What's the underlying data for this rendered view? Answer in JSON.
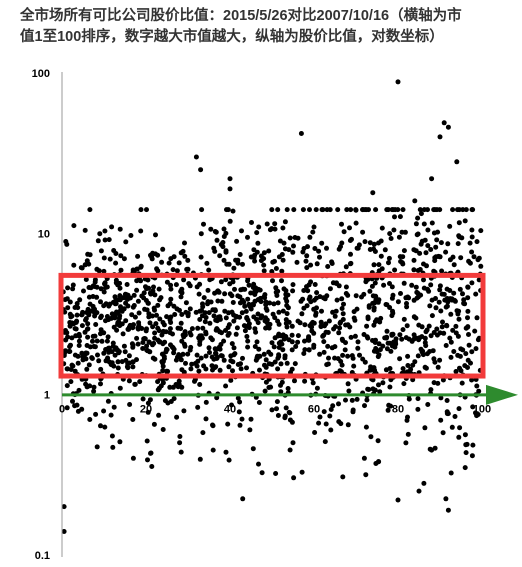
{
  "chart_data": {
    "type": "scatter",
    "title_lines": [
      "全市场所有可比公司股价比值：2015/5/26对比2007/10/16（横轴为市",
      "值1至100排序，数字越大市值越大，纵轴为股价比值，对数坐标）"
    ],
    "x_ticks": [
      "0",
      "20",
      "40",
      "60",
      "80",
      "100"
    ],
    "y_ticks": [
      "100",
      "10",
      "1",
      "0.1"
    ],
    "xlim": [
      0,
      100
    ],
    "ylim": [
      0.1,
      100
    ],
    "y_scale": "log",
    "grid": false,
    "colors": {
      "points": "#000000",
      "highlight_box": "#f23b3b",
      "arrow": "#2e8b2e",
      "axis": "#999999"
    },
    "highlight_box": {
      "x_range": [
        0,
        100
      ],
      "y_range": [
        1.3,
        5.5
      ]
    },
    "approx_point_count": 1700,
    "points": [
      [
        0.5,
        0.2
      ],
      [
        0.5,
        0.14
      ],
      [
        9,
        10
      ],
      [
        32,
        30
      ],
      [
        33,
        25
      ],
      [
        40,
        22
      ],
      [
        40,
        19
      ],
      [
        57,
        42
      ],
      [
        80,
        88
      ],
      [
        91,
        49
      ],
      [
        92,
        46
      ],
      [
        90,
        40
      ],
      [
        94,
        28
      ],
      [
        88,
        22
      ],
      [
        84,
        16
      ],
      [
        74,
        18
      ],
      [
        70,
        14
      ],
      [
        66,
        8
      ],
      [
        52,
        9
      ],
      [
        25,
        5.6
      ],
      [
        30,
        6
      ],
      [
        48,
        7
      ],
      [
        60,
        11
      ],
      [
        76,
        9
      ],
      [
        96,
        12
      ],
      [
        85,
        0.25
      ],
      [
        92,
        0.19
      ],
      [
        80,
        0.22
      ],
      [
        72,
        0.4
      ],
      [
        96,
        0.35
      ],
      [
        12,
        0.55
      ],
      [
        8,
        0.75
      ],
      [
        28,
        0.5
      ],
      [
        36,
        0.45
      ],
      [
        55,
        0.5
      ],
      [
        64,
        0.6
      ],
      [
        88,
        0.45
      ],
      [
        3,
        0.85
      ],
      [
        17,
        0.4
      ],
      [
        22,
        0.65
      ],
      [
        45,
        0.7
      ],
      [
        50,
        0.8
      ]
    ]
  }
}
